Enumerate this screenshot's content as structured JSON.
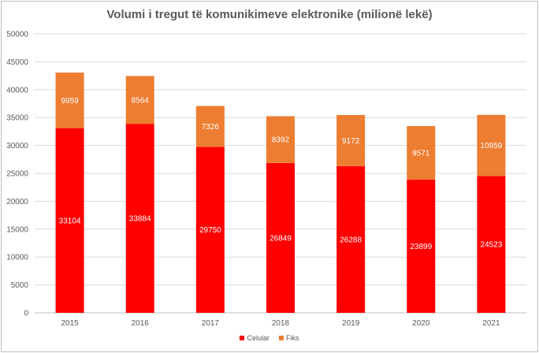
{
  "chart_data": {
    "type": "bar",
    "stacked": true,
    "title": "Volumi i tregut të komunikimeve elektronike (milionë lekë)",
    "categories": [
      "2015",
      "2016",
      "2017",
      "2018",
      "2019",
      "2020",
      "2021"
    ],
    "series": [
      {
        "name": "Celular",
        "color": "#ff0000",
        "values": [
          33104,
          33884,
          29750,
          26849,
          26288,
          23899,
          24523
        ]
      },
      {
        "name": "Fiks",
        "color": "#ed7d31",
        "values": [
          9959,
          8564,
          7326,
          8392,
          9172,
          9571,
          10959
        ]
      }
    ],
    "ylim": [
      0,
      50000
    ],
    "yticks": [
      0,
      5000,
      10000,
      15000,
      20000,
      25000,
      30000,
      35000,
      40000,
      45000,
      50000
    ],
    "grid": true,
    "legend_position": "bottom"
  }
}
